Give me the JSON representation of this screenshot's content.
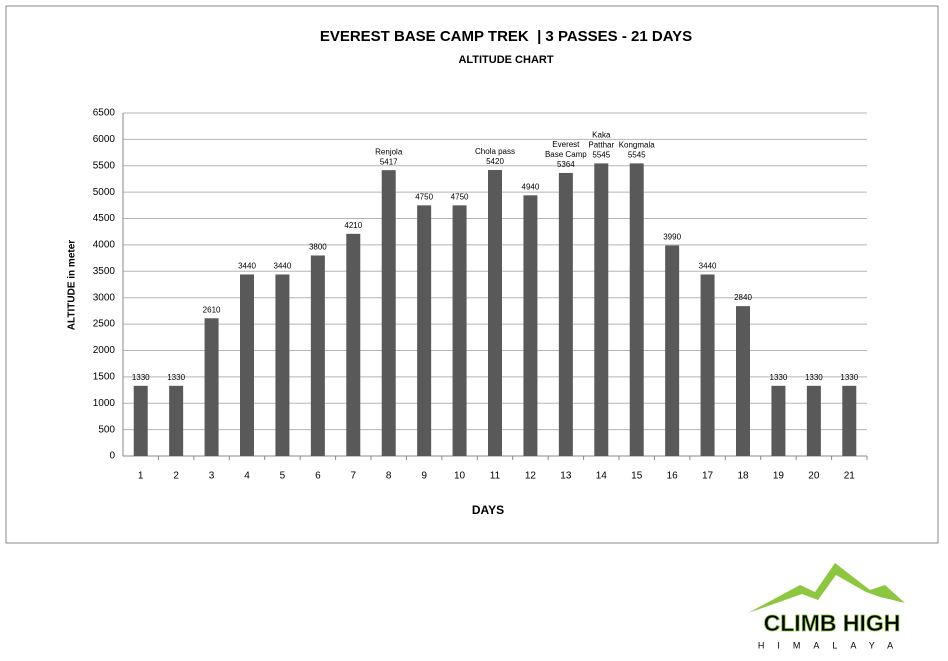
{
  "chart_data": {
    "type": "bar",
    "title": "EVEREST BASE CAMP TREK  | 3 PASSES - 21 DAYS",
    "subtitle": "ALTITUDE CHART",
    "x_label": "DAYS",
    "y_label": "ALTITUDE in meter",
    "categories": [
      "1",
      "2",
      "3",
      "4",
      "5",
      "6",
      "7",
      "8",
      "9",
      "10",
      "11",
      "12",
      "13",
      "14",
      "15",
      "16",
      "17",
      "18",
      "19",
      "20",
      "21"
    ],
    "values": [
      1330,
      1330,
      2610,
      3440,
      3440,
      3800,
      4210,
      5417,
      4750,
      4750,
      5420,
      4940,
      5364,
      5545,
      5545,
      3990,
      3440,
      2840,
      1330,
      1330,
      1330
    ],
    "point_labels": [
      null,
      null,
      null,
      null,
      null,
      null,
      null,
      [
        "Renjola"
      ],
      null,
      null,
      [
        "Chola pass"
      ],
      null,
      [
        "Everest",
        "Base Camp"
      ],
      [
        "Kaka",
        "Patthar"
      ],
      [
        "Kongmala"
      ],
      null,
      null,
      null,
      null,
      null,
      null
    ],
    "color": "#595959",
    "ylim": [
      0,
      6500
    ],
    "yticks": [
      0,
      500,
      1000,
      1500,
      2000,
      2500,
      3000,
      3500,
      4000,
      4500,
      5000,
      5500,
      6000,
      6500
    ],
    "grid": true
  },
  "logo": {
    "title": "CLIMB HIGH",
    "subtitle": "HIMALAYA"
  }
}
